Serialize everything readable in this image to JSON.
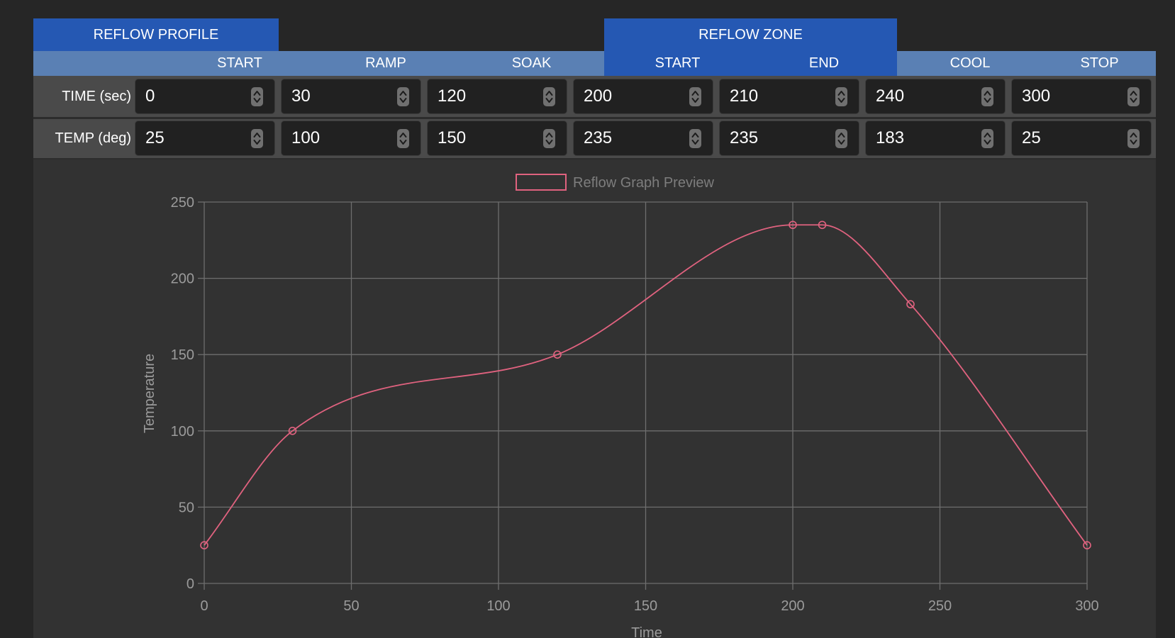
{
  "header": {
    "profile_label": "REFLOW PROFILE",
    "zone_label": "REFLOW ZONE",
    "columns": [
      "START",
      "RAMP",
      "SOAK",
      "START",
      "END",
      "COOL",
      "STOP"
    ]
  },
  "rows": {
    "time": {
      "label": "TIME (sec)",
      "values": [
        "0",
        "30",
        "120",
        "200",
        "210",
        "240",
        "300"
      ]
    },
    "temp": {
      "label": "TEMP (deg)",
      "values": [
        "25",
        "100",
        "150",
        "235",
        "235",
        "183",
        "25"
      ]
    }
  },
  "colors": {
    "primary_header": "#2558b3",
    "secondary_header": "#5a80b4",
    "series": "#e0627f"
  },
  "chart_data": {
    "type": "line",
    "legend": "Reflow Graph Preview",
    "legend_position": "top-center",
    "xlabel": "Time",
    "ylabel": "Temperature",
    "xlim": [
      0,
      300
    ],
    "ylim": [
      0,
      250
    ],
    "xticks": [
      0,
      50,
      100,
      150,
      200,
      250,
      300
    ],
    "yticks": [
      0,
      50,
      100,
      150,
      200,
      250
    ],
    "grid": true,
    "smooth": true,
    "series": [
      {
        "name": "Reflow Graph Preview",
        "x": [
          0,
          30,
          120,
          200,
          210,
          240,
          300
        ],
        "y": [
          25,
          100,
          150,
          235,
          235,
          183,
          25
        ]
      }
    ]
  }
}
